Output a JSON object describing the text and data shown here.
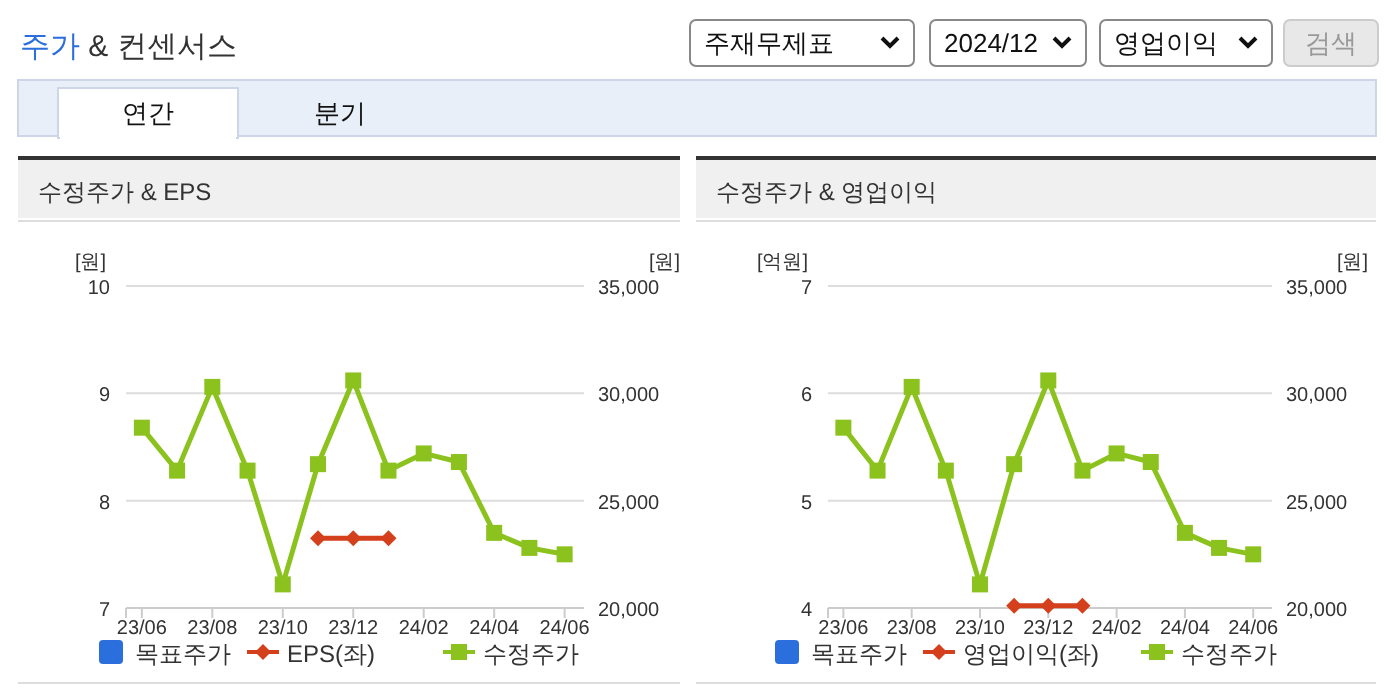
{
  "chart_data": [
    {
      "type": "other",
      "title": "주가 & 컨센서스",
      "annotations": [
        "주재무제표",
        "2024/12",
        "영업이익",
        "검색",
        "연간",
        "분기"
      ]
    },
    {
      "type": "line",
      "title": "수정주가 & EPS",
      "categories": [
        "23/06",
        null,
        "23/08",
        null,
        "23/10",
        null,
        "23/12",
        null,
        "24/02",
        null,
        "24/04",
        null,
        "24/06"
      ],
      "ylabel": "[원]",
      "y2label": "[원]",
      "ylim": [
        7,
        10
      ],
      "yticks": [
        7,
        8,
        9,
        10
      ],
      "y2lim": [
        20000,
        35000
      ],
      "y2ticks": [
        {
          "value": 20000,
          "label": "20,000"
        },
        {
          "value": 25000,
          "label": "25,000"
        },
        {
          "value": 30000,
          "label": "30,000"
        },
        {
          "value": 35000,
          "label": "35,000"
        }
      ],
      "grid": "y",
      "legend": "bottom",
      "series": [
        {
          "name": "목표주가",
          "color": "#2a6fdb",
          "marker": "square",
          "values": [
            null,
            null,
            null,
            null,
            null,
            null,
            null,
            null,
            null,
            null,
            null,
            null,
            null
          ]
        },
        {
          "name": "EPS(좌)",
          "color": "#d4401c",
          "marker": "diamond",
          "values": [
            null,
            null,
            null,
            null,
            null,
            7.65,
            7.65,
            7.65,
            null,
            null,
            null,
            null,
            null
          ]
        },
        {
          "name": "수정주가",
          "color": "#8cc21e",
          "marker": "square",
          "axis": "y2",
          "values": [
            28400,
            26400,
            30300,
            26400,
            21100,
            26700,
            30600,
            26400,
            27200,
            26800,
            23500,
            22800,
            22500
          ]
        }
      ]
    },
    {
      "type": "line",
      "title": "수정주가 & 영업이익",
      "categories": [
        "23/06",
        null,
        "23/08",
        null,
        "23/10",
        null,
        "23/12",
        null,
        "24/02",
        null,
        "24/04",
        null,
        "24/06"
      ],
      "ylabel": "[억원]",
      "y2label": "[원]",
      "ylim": [
        4,
        7
      ],
      "yticks": [
        4,
        5,
        6,
        7
      ],
      "y2lim": [
        20000,
        35000
      ],
      "y2ticks": [
        {
          "value": 20000,
          "label": "20,000"
        },
        {
          "value": 25000,
          "label": "25,000"
        },
        {
          "value": 30000,
          "label": "30,000"
        },
        {
          "value": 35000,
          "label": "35,000"
        }
      ],
      "grid": "y",
      "legend": "bottom",
      "series": [
        {
          "name": "목표주가",
          "color": "#2a6fdb",
          "marker": "square",
          "values": [
            null,
            null,
            null,
            null,
            null,
            null,
            null,
            null,
            null,
            null,
            null,
            null,
            null
          ]
        },
        {
          "name": "영업이익(좌)",
          "color": "#d4401c",
          "marker": "diamond",
          "values": [
            null,
            null,
            null,
            null,
            null,
            4.02,
            4.02,
            4.02,
            null,
            null,
            null,
            null,
            null
          ]
        },
        {
          "name": "수정주가",
          "color": "#8cc21e",
          "marker": "square",
          "axis": "y2",
          "values": [
            28400,
            26400,
            30300,
            26400,
            21100,
            26700,
            30600,
            26400,
            27200,
            26800,
            23500,
            22800,
            22500
          ]
        }
      ]
    }
  ]
}
